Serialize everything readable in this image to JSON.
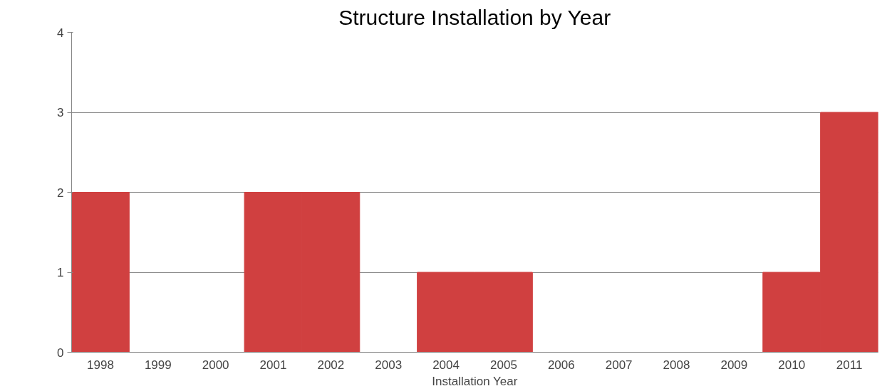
{
  "chart_data": {
    "type": "bar",
    "title": "Structure Installation by Year",
    "xlabel": "Installation Year",
    "categories": [
      "1998",
      "1999",
      "2000",
      "2001",
      "2002",
      "2003",
      "2004",
      "2005",
      "2006",
      "2007",
      "2008",
      "2009",
      "2010",
      "2011"
    ],
    "values": [
      2,
      0,
      0,
      2,
      2,
      0,
      1,
      1,
      0,
      0,
      0,
      0,
      1,
      3
    ],
    "color": "#d04040",
    "ylim": [
      0,
      4
    ],
    "yticks": [
      0,
      1,
      2,
      3,
      4
    ],
    "grid": "y"
  }
}
